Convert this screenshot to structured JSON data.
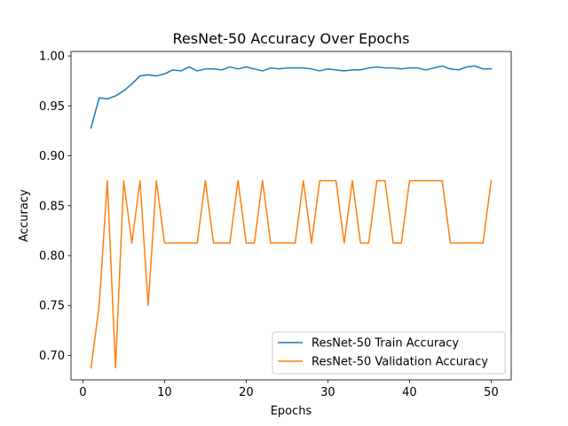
{
  "chart_data": {
    "type": "line",
    "title": "ResNet-50 Accuracy Over Epochs",
    "xlabel": "Epochs",
    "ylabel": "Accuracy",
    "xlim": [
      -1.45,
      52.45
    ],
    "ylim": [
      0.6755,
      1.0045
    ],
    "xticks": [
      0,
      10,
      20,
      30,
      40,
      50
    ],
    "yticks": [
      0.7,
      0.75,
      0.8,
      0.85,
      0.9,
      0.95,
      1.0
    ],
    "ytick_labels": [
      "0.70",
      "0.75",
      "0.80",
      "0.85",
      "0.90",
      "0.95",
      "1.00"
    ],
    "grid": false,
    "legend_position": "lower-right",
    "x": [
      1,
      2,
      3,
      4,
      5,
      6,
      7,
      8,
      9,
      10,
      11,
      12,
      13,
      14,
      15,
      16,
      17,
      18,
      19,
      20,
      21,
      22,
      23,
      24,
      25,
      26,
      27,
      28,
      29,
      30,
      31,
      32,
      33,
      34,
      35,
      36,
      37,
      38,
      39,
      40,
      41,
      42,
      43,
      44,
      45,
      46,
      47,
      48,
      49,
      50
    ],
    "series": [
      {
        "name": "ResNet-50 Train Accuracy",
        "color": "#1f77b4",
        "values": [
          0.928,
          0.958,
          0.957,
          0.96,
          0.965,
          0.972,
          0.98,
          0.981,
          0.98,
          0.982,
          0.986,
          0.985,
          0.989,
          0.985,
          0.987,
          0.987,
          0.986,
          0.989,
          0.987,
          0.989,
          0.987,
          0.985,
          0.988,
          0.987,
          0.988,
          0.988,
          0.988,
          0.987,
          0.985,
          0.987,
          0.986,
          0.985,
          0.986,
          0.986,
          0.988,
          0.989,
          0.988,
          0.988,
          0.987,
          0.988,
          0.988,
          0.986,
          0.988,
          0.99,
          0.987,
          0.986,
          0.989,
          0.99,
          0.987,
          0.987
        ]
      },
      {
        "name": "ResNet-50 Validation Accuracy",
        "color": "#ff7f0e",
        "values": [
          0.6875,
          0.75,
          0.875,
          0.6875,
          0.875,
          0.8125,
          0.875,
          0.75,
          0.875,
          0.8125,
          0.8125,
          0.8125,
          0.8125,
          0.8125,
          0.875,
          0.8125,
          0.8125,
          0.8125,
          0.875,
          0.8125,
          0.8125,
          0.875,
          0.8125,
          0.8125,
          0.8125,
          0.8125,
          0.875,
          0.8125,
          0.875,
          0.875,
          0.875,
          0.8125,
          0.875,
          0.8125,
          0.8125,
          0.875,
          0.875,
          0.8125,
          0.8125,
          0.875,
          0.875,
          0.875,
          0.875,
          0.875,
          0.8125,
          0.8125,
          0.8125,
          0.8125,
          0.8125,
          0.875
        ]
      }
    ]
  }
}
